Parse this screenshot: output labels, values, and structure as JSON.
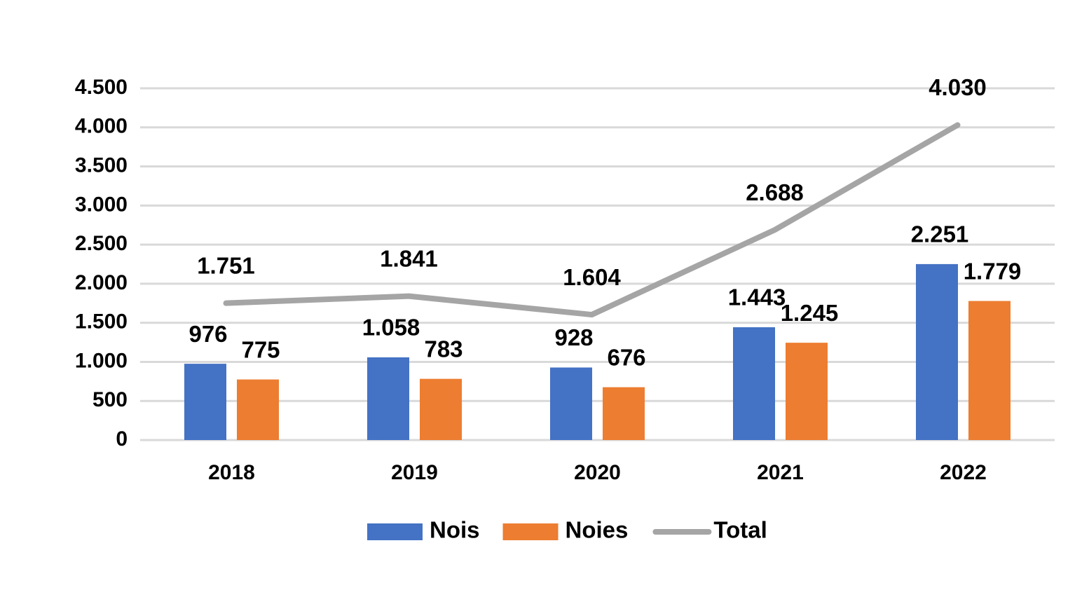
{
  "chart_data": {
    "type": "bar",
    "categories": [
      "2018",
      "2019",
      "2020",
      "2021",
      "2022"
    ],
    "series": [
      {
        "name": "Nois",
        "color": "#4472c4",
        "values": [
          976,
          1058,
          928,
          1443,
          2251
        ],
        "value_labels": [
          "976",
          "1.058",
          "928",
          "1.443",
          "2.251"
        ]
      },
      {
        "name": "Noies",
        "color": "#ed7d31",
        "values": [
          775,
          783,
          676,
          1245,
          1779
        ],
        "value_labels": [
          "775",
          "783",
          "676",
          "1.245",
          "1.779"
        ]
      },
      {
        "name": "Total",
        "type": "line",
        "color": "#a5a5a5",
        "values": [
          1751,
          1841,
          1604,
          2688,
          4030
        ],
        "value_labels": [
          "1.751",
          "1.841",
          "1.604",
          "2.688",
          "4.030"
        ]
      }
    ],
    "ylim": [
      0,
      4500
    ],
    "yticks": [
      0,
      500,
      {
        "value": 1000,
        "label": "1.000"
      },
      {
        "value": 1500,
        "label": "1.500"
      },
      {
        "value": 2000,
        "label": "2.000"
      },
      {
        "value": 2500,
        "label": "2.500"
      },
      {
        "value": 3000,
        "label": "3.000"
      },
      {
        "value": 3500,
        "label": "3.500"
      },
      {
        "value": 4000,
        "label": "4.000"
      },
      {
        "value": 4500,
        "label": "4.500"
      }
    ],
    "grid": true,
    "legend": "bottom"
  }
}
